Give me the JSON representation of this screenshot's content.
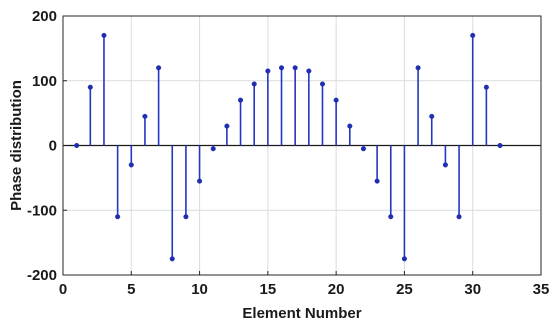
{
  "chart_data": {
    "type": "stem",
    "xlabel": "Element Number",
    "ylabel": "Phase distribution",
    "xlim": [
      0,
      35
    ],
    "ylim": [
      -200,
      200
    ],
    "xticks": [
      0,
      5,
      10,
      15,
      20,
      25,
      30,
      35
    ],
    "yticks": [
      -200,
      -100,
      0,
      100,
      200
    ],
    "grid": true,
    "marker_color": "#1f2fb0",
    "stem_color": "#2436c4",
    "x": [
      1,
      2,
      3,
      4,
      5,
      6,
      7,
      8,
      9,
      10,
      11,
      12,
      13,
      14,
      15,
      16,
      17,
      18,
      19,
      20,
      21,
      22,
      23,
      24,
      25,
      26,
      27,
      28,
      29,
      30,
      31,
      32
    ],
    "values": [
      0,
      90,
      170,
      -110,
      -30,
      45,
      120,
      -175,
      -110,
      -55,
      -5,
      30,
      70,
      95,
      115,
      120,
      120,
      115,
      95,
      70,
      30,
      -5,
      -55,
      -110,
      -175,
      120,
      45,
      -30,
      -110,
      170,
      90,
      0
    ]
  }
}
